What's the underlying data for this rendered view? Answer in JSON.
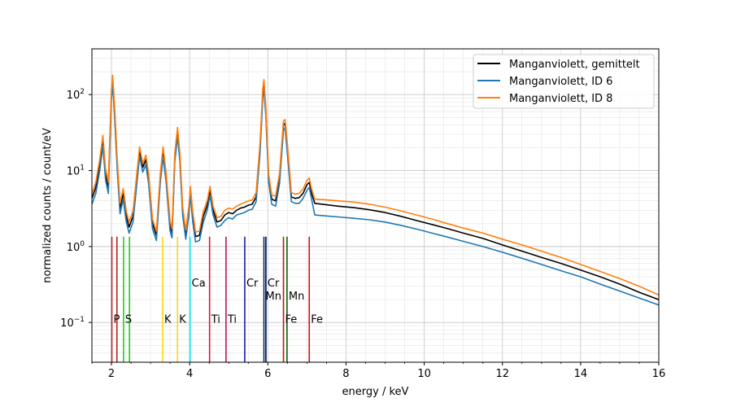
{
  "chart_data": {
    "type": "line",
    "title": "",
    "xlabel": "energy / keV",
    "ylabel": "normalized counts / count/eV",
    "xlim": [
      1.5,
      16
    ],
    "ylim": [
      0.03,
      400
    ],
    "yscale": "log",
    "grid": true,
    "legend_position": "top-right",
    "x_ticks": [
      2,
      4,
      6,
      8,
      10,
      12,
      14,
      16
    ],
    "y_ticks": [
      {
        "value": 0.1,
        "label": "10",
        "exp": "−1"
      },
      {
        "value": 1,
        "label": "10",
        "exp": "0"
      },
      {
        "value": 10,
        "label": "10",
        "exp": "1"
      },
      {
        "value": 100,
        "label": "10",
        "exp": "2"
      }
    ],
    "series": [
      {
        "name": "Manganviolett, gemittelt",
        "color": "#000000",
        "points": [
          [
            1.5,
            4.3
          ],
          [
            1.6,
            6
          ],
          [
            1.7,
            12
          ],
          [
            1.78,
            25
          ],
          [
            1.85,
            9
          ],
          [
            1.92,
            6
          ],
          [
            2.0,
            100
          ],
          [
            2.03,
            160
          ],
          [
            2.08,
            60
          ],
          [
            2.15,
            12
          ],
          [
            2.22,
            3.2
          ],
          [
            2.3,
            5
          ],
          [
            2.38,
            2.5
          ],
          [
            2.45,
            1.8
          ],
          [
            2.55,
            2.5
          ],
          [
            2.65,
            8
          ],
          [
            2.72,
            18
          ],
          [
            2.8,
            11
          ],
          [
            2.88,
            14
          ],
          [
            2.95,
            8
          ],
          [
            3.05,
            2
          ],
          [
            3.15,
            1.4
          ],
          [
            3.25,
            8
          ],
          [
            3.32,
            18
          ],
          [
            3.4,
            8
          ],
          [
            3.5,
            1.9
          ],
          [
            3.55,
            1.5
          ],
          [
            3.62,
            15
          ],
          [
            3.69,
            33
          ],
          [
            3.75,
            15
          ],
          [
            3.82,
            3
          ],
          [
            3.9,
            1.45
          ],
          [
            3.98,
            3
          ],
          [
            4.02,
            5.5
          ],
          [
            4.08,
            2.5
          ],
          [
            4.15,
            1.35
          ],
          [
            4.25,
            1.4
          ],
          [
            4.35,
            2.5
          ],
          [
            4.45,
            3.5
          ],
          [
            4.52,
            5.5
          ],
          [
            4.6,
            3
          ],
          [
            4.7,
            2.1
          ],
          [
            4.8,
            2.2
          ],
          [
            4.9,
            2.6
          ],
          [
            5.0,
            2.8
          ],
          [
            5.1,
            2.7
          ],
          [
            5.2,
            3.0
          ],
          [
            5.3,
            3.2
          ],
          [
            5.4,
            3.3
          ],
          [
            5.5,
            3.5
          ],
          [
            5.6,
            3.6
          ],
          [
            5.7,
            4.5
          ],
          [
            5.8,
            20
          ],
          [
            5.87,
            105
          ],
          [
            5.9,
            140
          ],
          [
            5.95,
            60
          ],
          [
            6.02,
            8
          ],
          [
            6.1,
            4.2
          ],
          [
            6.2,
            4
          ],
          [
            6.3,
            8
          ],
          [
            6.4,
            40
          ],
          [
            6.44,
            42
          ],
          [
            6.5,
            20
          ],
          [
            6.6,
            4.5
          ],
          [
            6.7,
            4.3
          ],
          [
            6.8,
            4.4
          ],
          [
            6.9,
            5
          ],
          [
            7.0,
            6.5
          ],
          [
            7.06,
            7
          ],
          [
            7.12,
            5
          ],
          [
            7.2,
            3.7
          ],
          [
            7.4,
            3.6
          ],
          [
            7.8,
            3.4
          ],
          [
            8.2,
            3.25
          ],
          [
            8.6,
            3.05
          ],
          [
            9.0,
            2.8
          ],
          [
            9.4,
            2.5
          ],
          [
            9.8,
            2.2
          ],
          [
            10.2,
            1.95
          ],
          [
            10.6,
            1.72
          ],
          [
            11.0,
            1.5
          ],
          [
            11.5,
            1.28
          ],
          [
            12.0,
            1.05
          ],
          [
            12.5,
            0.87
          ],
          [
            13.0,
            0.72
          ],
          [
            13.5,
            0.6
          ],
          [
            14.0,
            0.49
          ],
          [
            14.5,
            0.4
          ],
          [
            15.0,
            0.32
          ],
          [
            15.5,
            0.25
          ],
          [
            16.0,
            0.2
          ]
        ]
      },
      {
        "name": "Manganviolett, ID 6",
        "color": "#1f77b4",
        "points": [
          [
            1.5,
            3.6
          ],
          [
            1.6,
            5
          ],
          [
            1.7,
            10
          ],
          [
            1.78,
            21
          ],
          [
            1.85,
            7.5
          ],
          [
            1.92,
            5
          ],
          [
            2.0,
            85
          ],
          [
            2.03,
            140
          ],
          [
            2.08,
            50
          ],
          [
            2.15,
            10
          ],
          [
            2.22,
            2.7
          ],
          [
            2.3,
            4.2
          ],
          [
            2.38,
            2.1
          ],
          [
            2.45,
            1.5
          ],
          [
            2.55,
            2.1
          ],
          [
            2.65,
            6.8
          ],
          [
            2.72,
            15.5
          ],
          [
            2.8,
            9.5
          ],
          [
            2.88,
            12
          ],
          [
            2.95,
            6.8
          ],
          [
            3.05,
            1.7
          ],
          [
            3.15,
            1.2
          ],
          [
            3.25,
            7
          ],
          [
            3.32,
            15
          ],
          [
            3.4,
            7
          ],
          [
            3.5,
            1.6
          ],
          [
            3.55,
            1.3
          ],
          [
            3.62,
            13
          ],
          [
            3.69,
            28
          ],
          [
            3.75,
            13
          ],
          [
            3.82,
            2.6
          ],
          [
            3.9,
            1.25
          ],
          [
            3.98,
            2.6
          ],
          [
            4.02,
            4.7
          ],
          [
            4.08,
            2.1
          ],
          [
            4.15,
            1.15
          ],
          [
            4.25,
            1.2
          ],
          [
            4.35,
            2.1
          ],
          [
            4.45,
            3
          ],
          [
            4.52,
            4.7
          ],
          [
            4.6,
            2.6
          ],
          [
            4.7,
            1.8
          ],
          [
            4.8,
            1.9
          ],
          [
            4.9,
            2.2
          ],
          [
            5.0,
            2.4
          ],
          [
            5.1,
            2.3
          ],
          [
            5.2,
            2.6
          ],
          [
            5.3,
            2.7
          ],
          [
            5.4,
            2.8
          ],
          [
            5.5,
            3.0
          ],
          [
            5.6,
            3.1
          ],
          [
            5.7,
            3.9
          ],
          [
            5.8,
            17
          ],
          [
            5.87,
            90
          ],
          [
            5.9,
            120
          ],
          [
            5.95,
            51
          ],
          [
            6.02,
            7
          ],
          [
            6.1,
            3.6
          ],
          [
            6.2,
            3.4
          ],
          [
            6.3,
            6.8
          ],
          [
            6.4,
            34
          ],
          [
            6.44,
            36
          ],
          [
            6.5,
            17
          ],
          [
            6.6,
            3.9
          ],
          [
            6.7,
            3.7
          ],
          [
            6.8,
            3.7
          ],
          [
            6.9,
            4.3
          ],
          [
            7.0,
            5.5
          ],
          [
            7.06,
            6
          ],
          [
            7.12,
            4.2
          ],
          [
            7.2,
            2.6
          ],
          [
            7.4,
            2.55
          ],
          [
            7.8,
            2.45
          ],
          [
            8.2,
            2.35
          ],
          [
            8.6,
            2.25
          ],
          [
            9.0,
            2.1
          ],
          [
            9.4,
            1.9
          ],
          [
            9.8,
            1.7
          ],
          [
            10.2,
            1.5
          ],
          [
            10.6,
            1.33
          ],
          [
            11.0,
            1.17
          ],
          [
            11.5,
            1.0
          ],
          [
            12.0,
            0.84
          ],
          [
            12.5,
            0.7
          ],
          [
            13.0,
            0.58
          ],
          [
            13.5,
            0.48
          ],
          [
            14.0,
            0.4
          ],
          [
            14.5,
            0.32
          ],
          [
            15.0,
            0.26
          ],
          [
            15.5,
            0.21
          ],
          [
            16.0,
            0.17
          ]
        ]
      },
      {
        "name": "Manganviolett, ID 8",
        "color": "#ff7f0e",
        "points": [
          [
            1.5,
            5
          ],
          [
            1.6,
            7
          ],
          [
            1.7,
            14
          ],
          [
            1.78,
            29
          ],
          [
            1.85,
            10.5
          ],
          [
            1.92,
            7
          ],
          [
            2.0,
            115
          ],
          [
            2.03,
            180
          ],
          [
            2.08,
            70
          ],
          [
            2.15,
            14
          ],
          [
            2.22,
            3.7
          ],
          [
            2.3,
            5.8
          ],
          [
            2.38,
            2.9
          ],
          [
            2.45,
            2.1
          ],
          [
            2.55,
            2.9
          ],
          [
            2.65,
            9.3
          ],
          [
            2.72,
            20.5
          ],
          [
            2.8,
            12.5
          ],
          [
            2.88,
            16
          ],
          [
            2.95,
            9.2
          ],
          [
            3.05,
            2.3
          ],
          [
            3.15,
            1.6
          ],
          [
            3.25,
            9.2
          ],
          [
            3.32,
            20.5
          ],
          [
            3.4,
            9.2
          ],
          [
            3.5,
            2.2
          ],
          [
            3.55,
            1.7
          ],
          [
            3.62,
            17
          ],
          [
            3.69,
            37
          ],
          [
            3.75,
            17
          ],
          [
            3.82,
            3.4
          ],
          [
            3.9,
            1.65
          ],
          [
            3.98,
            3.4
          ],
          [
            4.02,
            6.2
          ],
          [
            4.08,
            2.9
          ],
          [
            4.15,
            1.55
          ],
          [
            4.25,
            1.6
          ],
          [
            4.35,
            2.9
          ],
          [
            4.45,
            4
          ],
          [
            4.52,
            6.2
          ],
          [
            4.6,
            3.4
          ],
          [
            4.7,
            2.4
          ],
          [
            4.8,
            2.5
          ],
          [
            4.9,
            3.0
          ],
          [
            5.0,
            3.2
          ],
          [
            5.1,
            3.1
          ],
          [
            5.2,
            3.4
          ],
          [
            5.3,
            3.6
          ],
          [
            5.4,
            3.8
          ],
          [
            5.5,
            4.0
          ],
          [
            5.6,
            4.1
          ],
          [
            5.7,
            5.1
          ],
          [
            5.8,
            23
          ],
          [
            5.87,
            120
          ],
          [
            5.9,
            158
          ],
          [
            5.95,
            68
          ],
          [
            6.02,
            9
          ],
          [
            6.1,
            4.8
          ],
          [
            6.2,
            4.6
          ],
          [
            6.3,
            9.2
          ],
          [
            6.4,
            45
          ],
          [
            6.44,
            47
          ],
          [
            6.5,
            23
          ],
          [
            6.6,
            5.1
          ],
          [
            6.7,
            4.9
          ],
          [
            6.8,
            5.0
          ],
          [
            6.9,
            5.7
          ],
          [
            7.0,
            7.4
          ],
          [
            7.06,
            8
          ],
          [
            7.12,
            5.7
          ],
          [
            7.2,
            4.2
          ],
          [
            7.4,
            4.15
          ],
          [
            7.8,
            4.0
          ],
          [
            8.2,
            3.85
          ],
          [
            8.6,
            3.6
          ],
          [
            9.0,
            3.3
          ],
          [
            9.4,
            2.95
          ],
          [
            9.8,
            2.6
          ],
          [
            10.2,
            2.3
          ],
          [
            10.6,
            2.0
          ],
          [
            11.0,
            1.75
          ],
          [
            11.5,
            1.5
          ],
          [
            12.0,
            1.25
          ],
          [
            12.5,
            1.05
          ],
          [
            13.0,
            0.87
          ],
          [
            13.5,
            0.72
          ],
          [
            14.0,
            0.58
          ],
          [
            14.5,
            0.47
          ],
          [
            15.0,
            0.38
          ],
          [
            15.5,
            0.3
          ],
          [
            16.0,
            0.23
          ]
        ]
      }
    ],
    "element_lines": [
      {
        "label": "P",
        "energy": 2.01,
        "color": "#b22222",
        "label_row": "low"
      },
      {
        "label": "",
        "energy": 2.14,
        "color": "#b22222",
        "label_row": "low"
      },
      {
        "label": "S",
        "energy": 2.31,
        "color": "#22cc22",
        "label_row": "low"
      },
      {
        "label": "",
        "energy": 2.46,
        "color": "#22cc22",
        "label_row": "low"
      },
      {
        "label": "K",
        "energy": 3.31,
        "color": "#ffd700",
        "label_row": "low"
      },
      {
        "label": "K",
        "energy": 3.69,
        "color": "#ffd700",
        "label_row": "low"
      },
      {
        "label": "Ca",
        "energy": 4.01,
        "color": "#00e5ee",
        "label_row": "high"
      },
      {
        "label": "Ti",
        "energy": 4.51,
        "color": "#dc143c",
        "label_row": "low"
      },
      {
        "label": "Ti",
        "energy": 4.93,
        "color": "#b0135a",
        "label_row": "low"
      },
      {
        "label": "Cr",
        "energy": 5.41,
        "color": "#1a1aaa",
        "label_row": "high"
      },
      {
        "label": "Mn",
        "energy": 5.9,
        "color": "#003366",
        "label_row": "mid"
      },
      {
        "label": "Cr",
        "energy": 5.95,
        "color": "#00005a",
        "label_row": "high"
      },
      {
        "label": "Fe",
        "energy": 6.4,
        "color": "#cc1111",
        "label_row": "low"
      },
      {
        "label": "Mn",
        "energy": 6.49,
        "color": "#006400",
        "label_row": "mid"
      },
      {
        "label": "Fe",
        "energy": 7.06,
        "color": "#cc1111",
        "label_row": "low"
      }
    ],
    "element_line_top": 1.35
  }
}
